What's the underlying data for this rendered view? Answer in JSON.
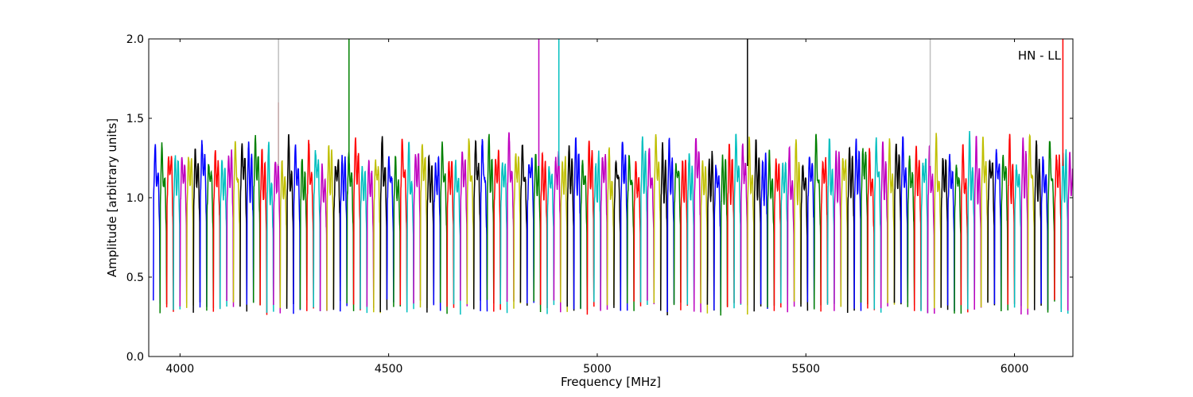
{
  "chart_data": {
    "type": "line",
    "title": "",
    "annotation": "HN - LL",
    "xlabel": "Frequency [MHz]",
    "ylabel": "Amplitude [arbitrary units]",
    "xlim": [
      3925,
      6140
    ],
    "ylim": [
      0.0,
      2.0
    ],
    "xticks": [
      4000,
      4500,
      5000,
      5500,
      6000
    ],
    "yticks": [
      0.0,
      0.5,
      1.0,
      1.5,
      2.0
    ],
    "xtick_labels": [
      "4000",
      "4500",
      "5000",
      "5500",
      "6000"
    ],
    "ytick_labels": [
      "0.0",
      "0.5",
      "1.0",
      "1.5",
      "2.0"
    ],
    "grid": false,
    "legend": "none",
    "color_cycle": [
      "#0000ff",
      "#008000",
      "#ff0000",
      "#00bfbf",
      "#bf00bf",
      "#bfbf00",
      "#000000"
    ],
    "background_trace_color": "#bfbfbf",
    "band_width_mhz": 16,
    "band_start_mhz": 3936,
    "band_end_mhz": 6136,
    "typical_band_profile": {
      "edge_min": 0.3,
      "peak_1": 1.3,
      "mid_min": 1.05,
      "peak_2": 1.2
    },
    "spikes": [
      {
        "x": 4236,
        "y": 1.6,
        "color": "#ff0000"
      },
      {
        "x": 4405,
        "y": 2.0,
        "color": "#008000"
      },
      {
        "x": 4860,
        "y": 2.0,
        "color": "#bf00bf"
      },
      {
        "x": 4908,
        "y": 2.0,
        "color": "#00bfbf"
      },
      {
        "x": 5360,
        "y": 2.0,
        "color": "#000000"
      },
      {
        "x": 6116,
        "y": 2.0,
        "color": "#ff0000"
      },
      {
        "x": 4236,
        "y": 2.0,
        "color": "#bfbfbf"
      },
      {
        "x": 5798,
        "y": 2.0,
        "color": "#bfbfbf"
      }
    ]
  }
}
